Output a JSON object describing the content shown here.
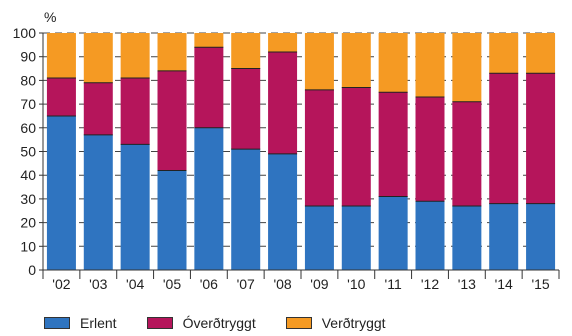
{
  "chart_data": {
    "type": "bar",
    "stacked": true,
    "unit_label": "%",
    "categories": [
      "'02",
      "'03",
      "'04",
      "'05",
      "'06",
      "'07",
      "'08",
      "'09",
      "'10",
      "'11",
      "'12",
      "'13",
      "'14",
      "'15"
    ],
    "ylim": [
      0,
      100
    ],
    "yticks": [
      0,
      10,
      20,
      30,
      40,
      50,
      60,
      70,
      80,
      90,
      100
    ],
    "grid": "dashed horizontal",
    "legend_position": "bottom",
    "series": [
      {
        "name": "Erlent",
        "color": "#2f74c0",
        "values": [
          65,
          57,
          53,
          42,
          60,
          51,
          49,
          27,
          27,
          31,
          29,
          27,
          28,
          28
        ]
      },
      {
        "name": "Óverðtryggt",
        "color": "#b5155b",
        "values": [
          16,
          22,
          28,
          42,
          34,
          34,
          43,
          49,
          50,
          44,
          44,
          44,
          55,
          55
        ]
      },
      {
        "name": "Verðtryggt",
        "color": "#f59a23",
        "values": [
          19,
          21,
          19,
          16,
          6,
          15,
          8,
          24,
          23,
          25,
          27,
          29,
          17,
          17
        ]
      }
    ]
  }
}
